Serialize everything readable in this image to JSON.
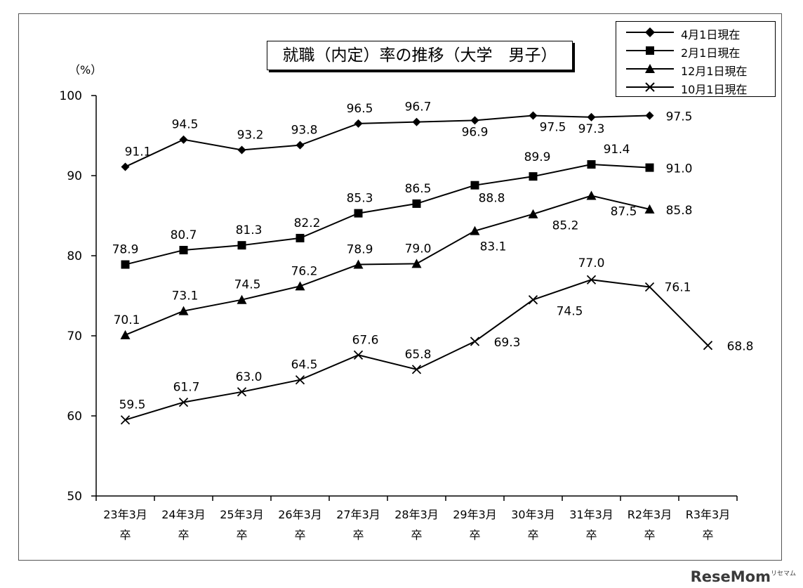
{
  "chart_data": {
    "type": "line",
    "title": "就職（内定）率の推移（大学　男子）",
    "unit_label": "（%）",
    "ylim": [
      50,
      100
    ],
    "yticks": [
      50,
      60,
      70,
      80,
      90,
      100
    ],
    "grid": false,
    "legend_position": "top-right",
    "categories": [
      {
        "line1": "23年3月",
        "line2": "卒"
      },
      {
        "line1": "24年3月",
        "line2": "卒"
      },
      {
        "line1": "25年3月",
        "line2": "卒"
      },
      {
        "line1": "26年3月",
        "line2": "卒"
      },
      {
        "line1": "27年3月",
        "line2": "卒"
      },
      {
        "line1": "28年3月",
        "line2": "卒"
      },
      {
        "line1": "29年3月",
        "line2": "卒"
      },
      {
        "line1": "30年3月",
        "line2": "卒"
      },
      {
        "line1": "31年3月",
        "line2": "卒"
      },
      {
        "line1": "R2年3月",
        "line2": "卒"
      },
      {
        "line1": "R3年3月",
        "line2": "卒"
      }
    ],
    "series": [
      {
        "name": "4月1日現在",
        "marker": "diamond",
        "values": [
          91.1,
          94.5,
          93.2,
          93.8,
          96.5,
          96.7,
          96.9,
          97.5,
          97.3,
          97.5,
          null
        ],
        "labels": [
          "91.1",
          "94.5",
          "93.2",
          "93.8",
          "96.5",
          "96.7",
          "96.9",
          "97.5",
          "97.3",
          "97.5",
          null
        ]
      },
      {
        "name": "2月1日現在",
        "marker": "square",
        "values": [
          78.9,
          80.7,
          81.3,
          82.2,
          85.3,
          86.5,
          88.8,
          89.9,
          91.4,
          91.0,
          null
        ],
        "labels": [
          "78.9",
          "80.7",
          "81.3",
          "82.2",
          "85.3",
          "86.5",
          "88.8",
          "89.9",
          "91.4",
          "91.0",
          null
        ]
      },
      {
        "name": "12月1日現在",
        "marker": "triangle",
        "values": [
          70.1,
          73.1,
          74.5,
          76.2,
          78.9,
          79.0,
          83.1,
          85.2,
          87.5,
          85.8,
          null
        ],
        "labels": [
          "70.1",
          "73.1",
          "74.5",
          "76.2",
          "78.9",
          "79.0",
          "83.1",
          "85.2",
          "87.5",
          "85.8",
          null
        ]
      },
      {
        "name": "10月1日現在",
        "marker": "x",
        "values": [
          59.5,
          61.7,
          63.0,
          64.5,
          67.6,
          65.8,
          69.3,
          74.5,
          77.0,
          76.1,
          68.8
        ],
        "labels": [
          "59.5",
          "61.7",
          "63.0",
          "64.5",
          "67.6",
          "65.8",
          "69.3",
          "74.5",
          "77.0",
          "76.1",
          "68.8"
        ]
      }
    ]
  },
  "watermark": {
    "text": "ReseMom",
    "sub": "リセマム"
  }
}
